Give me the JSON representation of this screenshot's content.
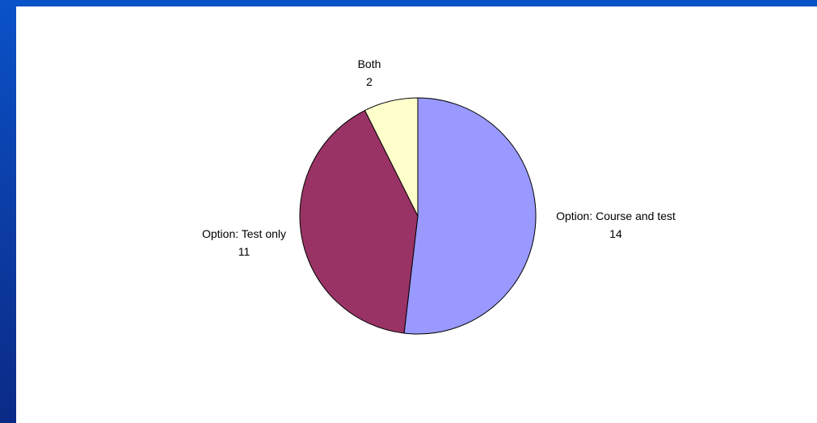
{
  "colors": {
    "background_blue": "#0b3fa8",
    "plot_background": "#ffffff"
  },
  "chart_data": {
    "type": "pie",
    "slices": [
      {
        "label": "Option: Course and test",
        "value": 14,
        "color": "#9999ff"
      },
      {
        "label": "Option: Test only",
        "value": 11,
        "color": "#993366"
      },
      {
        "label": "Both",
        "value": 2,
        "color": "#ffffcc"
      }
    ],
    "start_angle": "12 o'clock",
    "direction": "clockwise",
    "data_labels": "category and value, outside"
  }
}
